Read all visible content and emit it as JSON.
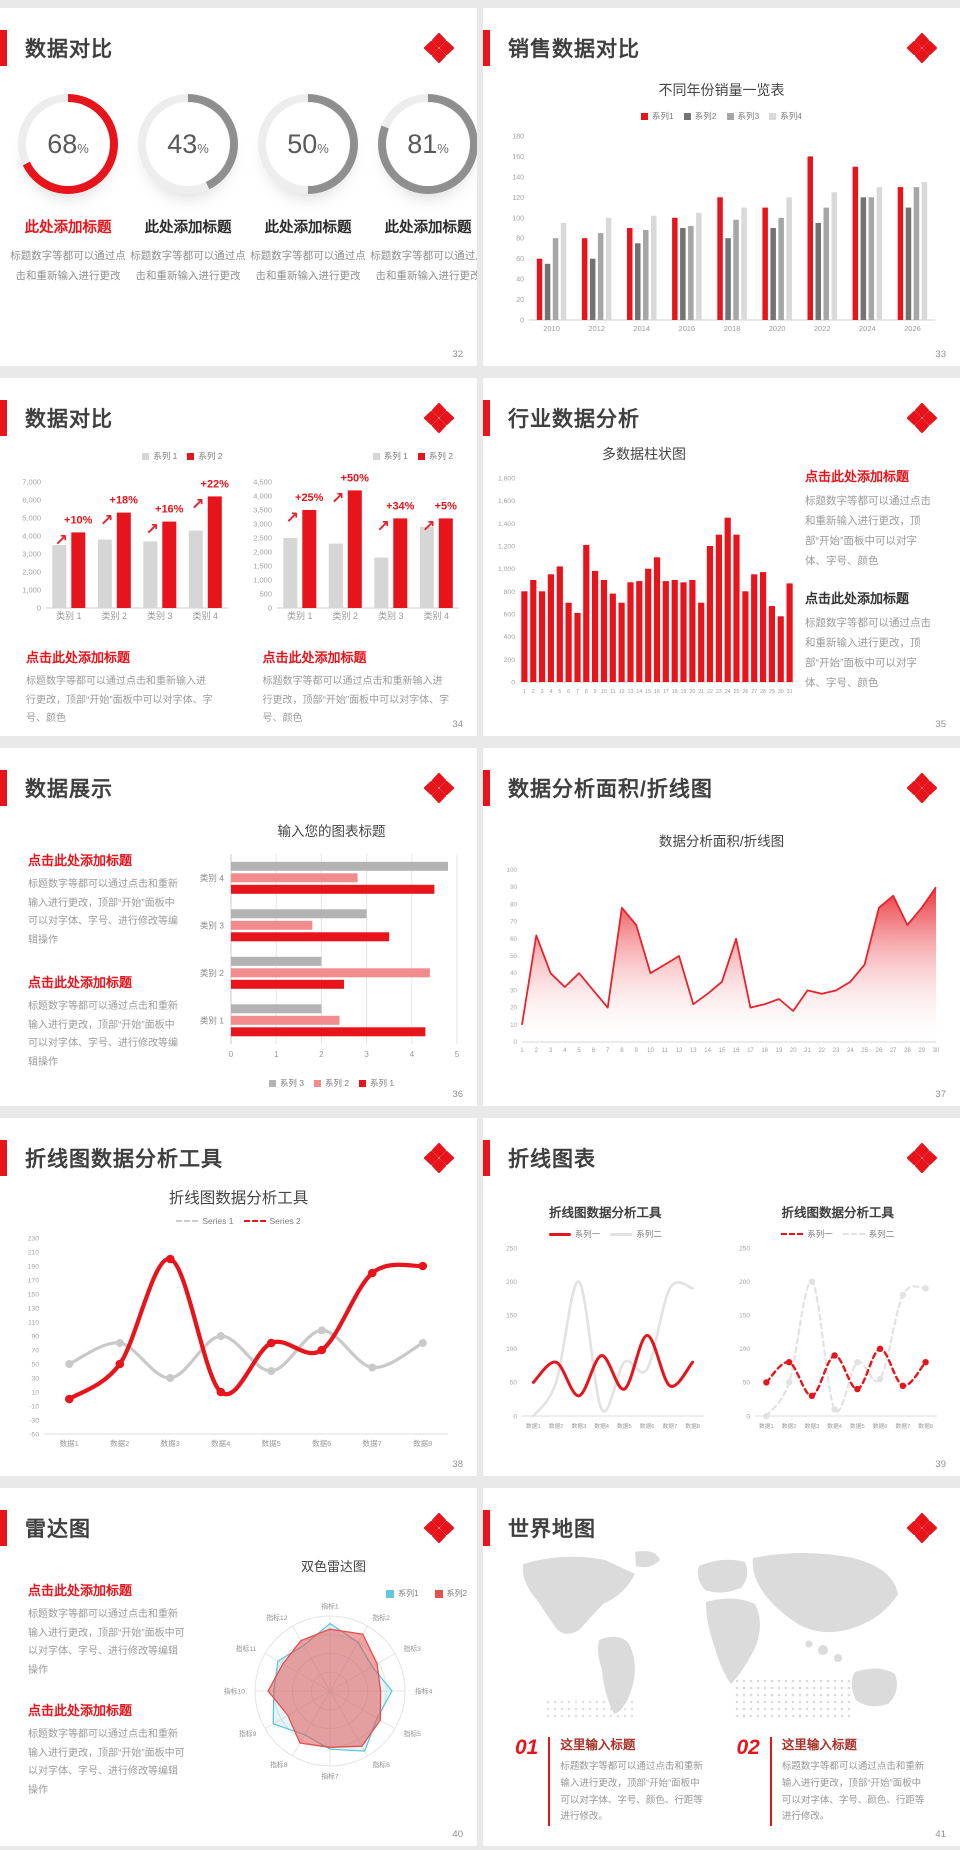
{
  "accent": "#e8141c",
  "slides": [
    {
      "title": "数据对比",
      "page": "32",
      "donut_items": [
        {
          "value": "68",
          "unit": "%",
          "pct": 68,
          "color": "#e8141c",
          "heading": "此处添加标题",
          "heading_color": "#e8141c",
          "body": "标题数字等都可以通过点击和重新输入进行更改"
        },
        {
          "value": "43",
          "unit": "%",
          "pct": 43,
          "color": "#8f8f8f",
          "heading": "此处添加标题",
          "heading_color": "#2b2b2b",
          "body": "标题数字等都可以通过点击和重新输入进行更改"
        },
        {
          "value": "50",
          "unit": "%",
          "pct": 50,
          "color": "#8f8f8f",
          "heading": "此处添加标题",
          "heading_color": "#2b2b2b",
          "body": "标题数字等都可以通过点击和重新输入进行更改"
        },
        {
          "value": "81",
          "unit": "%",
          "pct": 81,
          "color": "#8f8f8f",
          "heading": "此处添加标题",
          "heading_color": "#2b2b2b",
          "body": "标题数字等都可以通过点击和重新输入进行更改"
        }
      ]
    },
    {
      "title": "销售数据对比",
      "page": "33"
    },
    {
      "title": "数据对比",
      "page": "34",
      "captions": [
        {
          "heading": "点击此处添加标题",
          "body": "标题数字等都可以通过点击和重新输入进行更改，顶部“开始”面板中可以对字体、字号、颜色"
        },
        {
          "heading": "点击此处添加标题",
          "body": "标题数字等都可以通过点击和重新输入进行更改，顶部“开始”面板中可以对字体、字号、颜色"
        }
      ]
    },
    {
      "title": "行业数据分析",
      "page": "35",
      "captions": [
        {
          "heading": "点击此处添加标题",
          "heading_color": "#e8141c",
          "body": "标题数字等都可以通过点击和重新输入进行更改，顶部“开始”面板中可以对字体、字号、颜色"
        },
        {
          "heading": "点击此处添加标题",
          "heading_color": "#333333",
          "body": "标题数字等都可以通过点击和重新输入进行更改，顶部“开始”面板中可以对字体、字号、颜色"
        }
      ]
    },
    {
      "title": "数据展示",
      "page": "36",
      "captions": [
        {
          "heading": "点击此处添加标题",
          "body": "标题数字等都可以通过点击和重新输入进行更改，顶部“开始”面板中可以对字体、字号、进行修改等编辑操作"
        },
        {
          "heading": "点击此处添加标题",
          "body": "标题数字等都可以通过点击和重新输入进行更改，顶部“开始”面板中可以对字体、字号、进行修改等编辑操作"
        }
      ]
    },
    {
      "title": "数据分析面积/折线图",
      "page": "37"
    },
    {
      "title": "折线图数据分析工具",
      "page": "38"
    },
    {
      "title": "折线图表",
      "page": "39"
    },
    {
      "title": "雷达图",
      "page": "40",
      "captions": [
        {
          "heading": "点击此处添加标题",
          "body": "标题数字等都可以通过点击和重新输入进行更改，顶部“开始”面板中可以对字体、字号、进行修改等编辑操作"
        },
        {
          "heading": "点击此处添加标题",
          "body": "标题数字等都可以通过点击和重新输入进行更改，顶部“开始”面板中可以对字体、字号、进行修改等编辑操作"
        }
      ]
    },
    {
      "title": "世界地图",
      "page": "41",
      "map_items": [
        {
          "num": "01",
          "heading": "这里输入标题",
          "body": "标题数字等都可以通过点击和重新输入进行更改，顶部“开始”面板中可以对字体、字号、颜色、行距等进行修改。"
        },
        {
          "num": "02",
          "heading": "这里输入标题",
          "body": "标题数字等都可以通过点击和重新输入进行更改，顶部“开始”面板中可以对字体、字号、颜色、行距等进行修改。"
        }
      ]
    }
  ],
  "chart_data": [
    {
      "type": "bar",
      "title": "不同年份销量一览表",
      "categories": [
        "2010",
        "2012",
        "2014",
        "2016",
        "2018",
        "2020",
        "2022",
        "2024",
        "2026"
      ],
      "series": [
        {
          "name": "系列1",
          "color": "#e8141c",
          "values": [
            60,
            80,
            90,
            100,
            120,
            110,
            160,
            150,
            130
          ]
        },
        {
          "name": "系列2",
          "color": "#737373",
          "values": [
            55,
            60,
            75,
            90,
            80,
            90,
            95,
            120,
            110
          ]
        },
        {
          "name": "系列3",
          "color": "#a6a6a6",
          "values": [
            80,
            85,
            88,
            92,
            98,
            100,
            110,
            120,
            130
          ]
        },
        {
          "name": "系列4",
          "color": "#d9d9d9",
          "values": [
            95,
            100,
            102,
            105,
            110,
            120,
            125,
            130,
            135
          ]
        }
      ],
      "ylim": [
        0,
        180
      ],
      "ystep": 20,
      "legend_position": "top",
      "grid": false
    },
    {
      "type": "bar",
      "title": "",
      "categories": [
        "类别 1",
        "类别 2",
        "类别 3",
        "类别 4"
      ],
      "series": [
        {
          "name": "系列 1",
          "color": "#d6d6d6",
          "values": [
            3500,
            3800,
            3700,
            4300
          ]
        },
        {
          "name": "系列 2",
          "color": "#e8141c",
          "values": [
            4200,
            5300,
            4800,
            6200
          ]
        }
      ],
      "growth_labels": [
        "+10%",
        "+18%",
        "+16%",
        "+22%"
      ],
      "ylim": [
        0,
        7000
      ],
      "ystep": 1000,
      "legend_position": "top-right",
      "grid": false
    },
    {
      "type": "bar",
      "title": "",
      "categories": [
        "类别 1",
        "类别 2",
        "类别 3",
        "类别 4"
      ],
      "series": [
        {
          "name": "系列 1",
          "color": "#d6d6d6",
          "values": [
            2500,
            2300,
            1800,
            2900
          ]
        },
        {
          "name": "系列 2",
          "color": "#e8141c",
          "values": [
            3500,
            4200,
            3200,
            3200
          ]
        }
      ],
      "growth_labels": [
        "+25%",
        "+50%",
        "+34%",
        "+5%"
      ],
      "ylim": [
        0,
        4500
      ],
      "ystep": 500,
      "legend_position": "top-right",
      "grid": false
    },
    {
      "type": "bar",
      "title": "多数据柱状图",
      "categories": [
        "1",
        "2",
        "3",
        "4",
        "5",
        "6",
        "7",
        "8",
        "9",
        "10",
        "11",
        "12",
        "13",
        "14",
        "15",
        "16",
        "17",
        "18",
        "19",
        "20",
        "21",
        "22",
        "23",
        "24",
        "25",
        "26",
        "27",
        "28",
        "29",
        "30",
        "31"
      ],
      "series": [
        {
          "name": "系列1",
          "color": "#e8141c",
          "values": [
            800,
            900,
            800,
            950,
            1020,
            700,
            610,
            1210,
            980,
            900,
            780,
            700,
            880,
            890,
            1000,
            1100,
            890,
            900,
            880,
            900,
            700,
            1200,
            1300,
            1450,
            1300,
            800,
            950,
            970,
            670,
            580,
            870
          ]
        }
      ],
      "ylim": [
        0,
        1800
      ],
      "ystep": 200,
      "legend_position": "none",
      "grid": false
    },
    {
      "type": "hbar",
      "title": "输入您的图表标题",
      "categories": [
        "类别 4",
        "类别 3",
        "类别 2",
        "类别 1"
      ],
      "series": [
        {
          "name": "系列 3",
          "color": "#b3b3b3",
          "values": [
            4.8,
            3.0,
            2.0,
            2.0
          ]
        },
        {
          "name": "系列 2",
          "color": "#f28b8b",
          "values": [
            2.8,
            1.8,
            4.4,
            2.4
          ]
        },
        {
          "name": "系列 1",
          "color": "#e8141c",
          "values": [
            4.5,
            3.5,
            2.5,
            4.3
          ]
        }
      ],
      "xlim": [
        0,
        5
      ],
      "xstep": 1,
      "legend_position": "bottom",
      "grid": true
    },
    {
      "type": "area",
      "title": "数据分析面积/折线图",
      "color": "#e8232b",
      "x": [
        1,
        2,
        3,
        4,
        5,
        6,
        7,
        8,
        9,
        10,
        11,
        12,
        13,
        14,
        15,
        16,
        17,
        18,
        19,
        20,
        21,
        22,
        23,
        24,
        25,
        26,
        27,
        28,
        29,
        30
      ],
      "values": [
        10,
        62,
        40,
        32,
        40,
        30,
        20,
        78,
        68,
        40,
        45,
        50,
        22,
        28,
        35,
        60,
        20,
        22,
        25,
        18,
        30,
        28,
        30,
        35,
        45,
        78,
        85,
        68,
        78,
        90
      ],
      "ylim": [
        0,
        100
      ],
      "ystep": 10,
      "grid": false
    },
    {
      "type": "line",
      "title": "折线图数据分析工具",
      "categories": [
        "数据1",
        "数据2",
        "数据3",
        "数据4",
        "数据5",
        "数据6",
        "数据7",
        "数据8"
      ],
      "series": [
        {
          "name": "Series 1",
          "color": "#c9c9c9",
          "values": [
            50,
            80,
            30,
            90,
            40,
            98,
            45,
            80
          ]
        },
        {
          "name": "Series 2",
          "color": "#e8141c",
          "values": [
            0,
            50,
            200,
            10,
            80,
            70,
            180,
            190
          ]
        }
      ],
      "ylim": [
        -50,
        230
      ],
      "ystep": 20,
      "markers": true,
      "dashed": false,
      "legend_position": "top",
      "grid": false
    },
    {
      "type": "line",
      "title": "折线图数据分析工具",
      "categories": [
        "数据1",
        "数据2",
        "数据3",
        "数据4",
        "数据5",
        "数据6",
        "数据7",
        "数据8"
      ],
      "series": [
        {
          "name": "系列一",
          "color": "#e8141c",
          "values": [
            50,
            80,
            30,
            90,
            40,
            120,
            45,
            80
          ]
        },
        {
          "name": "系列二",
          "color": "#e2e2e2",
          "values": [
            0,
            50,
            200,
            10,
            80,
            70,
            190,
            190
          ]
        }
      ],
      "ylim": [
        0,
        250
      ],
      "ystep": 50,
      "markers": false,
      "dashed": false,
      "legend_position": "top",
      "grid": false
    },
    {
      "type": "line",
      "title": "折线图数据分析工具",
      "categories": [
        "数据1",
        "数据2",
        "数据3",
        "数据4",
        "数据5",
        "数据6",
        "数据7",
        "数据8"
      ],
      "series": [
        {
          "name": "系列一",
          "color": "#e8141c",
          "values": [
            50,
            80,
            30,
            90,
            40,
            100,
            45,
            80
          ]
        },
        {
          "name": "系列二",
          "color": "#e2e2e2",
          "values": [
            0,
            50,
            200,
            10,
            80,
            55,
            180,
            190
          ]
        }
      ],
      "ylim": [
        0,
        250
      ],
      "ystep": 50,
      "markers": true,
      "dashed": true,
      "legend_position": "top",
      "grid": false
    },
    {
      "type": "radar",
      "title": "双色雷达图",
      "categories": [
        "指标1",
        "指标2",
        "指标3",
        "指标4",
        "指标5",
        "指标6",
        "指标7",
        "指标8",
        "指标9",
        "指标10",
        "指标11",
        "指标12"
      ],
      "series": [
        {
          "name": "系列1",
          "color": "#62c6de",
          "values": [
            3.6,
            3.0,
            2.6,
            3.3,
            2.9,
            3.7,
            3.1,
            2.7,
            3.5,
            3.0,
            3.2,
            2.8
          ]
        },
        {
          "name": "系列2",
          "color": "#e2504f",
          "values": [
            3.3,
            3.5,
            2.9,
            2.7,
            3.1,
            3.4,
            3.0,
            3.2,
            2.6,
            3.3,
            2.9,
            3.1
          ]
        }
      ],
      "rlim": [
        0,
        4
      ],
      "legend_position": "right"
    }
  ]
}
